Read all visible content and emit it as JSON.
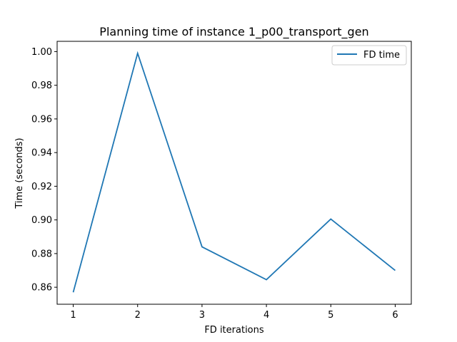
{
  "chart_data": {
    "type": "line",
    "title": "Planning time of instance 1_p00_transport_gen",
    "xlabel": "FD iterations",
    "ylabel": "Time (seconds)",
    "x": [
      1,
      2,
      3,
      4,
      5,
      6
    ],
    "series": [
      {
        "name": "FD time",
        "values": [
          0.857,
          0.999,
          0.884,
          0.8645,
          0.9005,
          0.87
        ],
        "color": "#1f77b4"
      }
    ],
    "xlim": [
      0.75,
      6.25
    ],
    "ylim": [
      0.8499,
      1.0061
    ],
    "xticks": [
      "1",
      "2",
      "3",
      "4",
      "5",
      "6"
    ],
    "yticks": [
      "0.86",
      "0.88",
      "0.90",
      "0.92",
      "0.94",
      "0.96",
      "0.98",
      "1.00"
    ],
    "grid": false,
    "legend": "top-right"
  }
}
